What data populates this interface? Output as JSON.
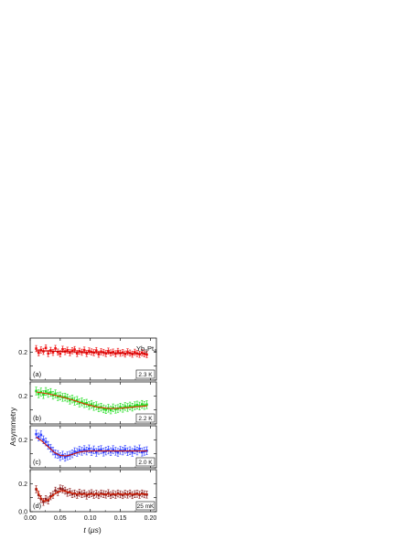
{
  "figure": {
    "ylabel": "Asymmetry",
    "xlabel_var": "t",
    "xlabel_unit": "μs",
    "x_ticks": [
      "0.00",
      "0.05",
      "0.10",
      "0.15",
      "0.20"
    ],
    "compound": {
      "base1": "Yb",
      "sub1": "3",
      "base2": "Pt",
      "sub2": "4"
    }
  },
  "chart_data": [
    {
      "type": "scatter",
      "panel_label": "(a)",
      "temperature": "2.3 K",
      "color": "#ee1111",
      "fit_color": "#cc0000",
      "xlim": [
        0,
        0.21
      ],
      "ylim": [
        0,
        0.3
      ],
      "y_ticks": [
        "0.2"
      ],
      "x": [
        0.01,
        0.014,
        0.018,
        0.022,
        0.026,
        0.03,
        0.034,
        0.038,
        0.042,
        0.046,
        0.05,
        0.054,
        0.058,
        0.062,
        0.066,
        0.07,
        0.074,
        0.078,
        0.082,
        0.086,
        0.09,
        0.094,
        0.098,
        0.102,
        0.106,
        0.11,
        0.114,
        0.118,
        0.122,
        0.126,
        0.13,
        0.134,
        0.138,
        0.142,
        0.146,
        0.15,
        0.154,
        0.158,
        0.162,
        0.166,
        0.17,
        0.174,
        0.178,
        0.182,
        0.186,
        0.19,
        0.194
      ],
      "y": [
        0.225,
        0.195,
        0.215,
        0.205,
        0.23,
        0.19,
        0.212,
        0.198,
        0.226,
        0.2,
        0.188,
        0.22,
        0.204,
        0.213,
        0.196,
        0.21,
        0.218,
        0.19,
        0.206,
        0.199,
        0.214,
        0.19,
        0.208,
        0.201,
        0.196,
        0.211,
        0.185,
        0.203,
        0.198,
        0.19,
        0.207,
        0.194,
        0.2,
        0.188,
        0.205,
        0.192,
        0.197,
        0.186,
        0.202,
        0.193,
        0.185,
        0.199,
        0.19,
        0.184,
        0.196,
        0.187,
        0.182
      ],
      "yerr": 0.022,
      "fit": {
        "x": [
          0.01,
          0.05,
          0.1,
          0.15,
          0.195
        ],
        "y": [
          0.21,
          0.205,
          0.199,
          0.193,
          0.188
        ]
      }
    },
    {
      "type": "scatter",
      "panel_label": "(b)",
      "temperature": "2.2 K",
      "color": "#22dd22",
      "fit_color": "#dd3300",
      "xlim": [
        0,
        0.21
      ],
      "ylim": [
        0,
        0.3
      ],
      "y_ticks": [
        "0.2"
      ],
      "x": [
        0.01,
        0.014,
        0.018,
        0.022,
        0.026,
        0.03,
        0.034,
        0.038,
        0.042,
        0.046,
        0.05,
        0.054,
        0.058,
        0.062,
        0.066,
        0.07,
        0.074,
        0.078,
        0.082,
        0.086,
        0.09,
        0.094,
        0.098,
        0.102,
        0.106,
        0.11,
        0.114,
        0.118,
        0.122,
        0.126,
        0.13,
        0.134,
        0.138,
        0.142,
        0.146,
        0.15,
        0.154,
        0.158,
        0.162,
        0.166,
        0.17,
        0.174,
        0.178,
        0.182,
        0.186,
        0.19,
        0.194
      ],
      "y": [
        0.235,
        0.215,
        0.228,
        0.21,
        0.232,
        0.218,
        0.225,
        0.205,
        0.215,
        0.195,
        0.2,
        0.19,
        0.192,
        0.185,
        0.17,
        0.178,
        0.162,
        0.168,
        0.15,
        0.158,
        0.145,
        0.148,
        0.132,
        0.14,
        0.125,
        0.13,
        0.115,
        0.12,
        0.108,
        0.102,
        0.112,
        0.1,
        0.115,
        0.105,
        0.11,
        0.12,
        0.112,
        0.125,
        0.118,
        0.128,
        0.12,
        0.13,
        0.135,
        0.128,
        0.14,
        0.132,
        0.138
      ],
      "yerr": 0.028,
      "fit": {
        "x": [
          0.01,
          0.03,
          0.05,
          0.07,
          0.09,
          0.11,
          0.13,
          0.15,
          0.17,
          0.195
        ],
        "y": [
          0.228,
          0.215,
          0.196,
          0.172,
          0.145,
          0.122,
          0.11,
          0.112,
          0.12,
          0.13
        ]
      }
    },
    {
      "type": "scatter",
      "panel_label": "(c)",
      "temperature": "2.0 K",
      "color": "#3344ff",
      "fit_color": "#cc1100",
      "xlim": [
        0,
        0.21
      ],
      "ylim": [
        0,
        0.3
      ],
      "y_ticks": [
        "0.2"
      ],
      "x": [
        0.01,
        0.014,
        0.018,
        0.022,
        0.026,
        0.03,
        0.034,
        0.038,
        0.042,
        0.046,
        0.05,
        0.054,
        0.058,
        0.062,
        0.066,
        0.07,
        0.074,
        0.078,
        0.082,
        0.086,
        0.09,
        0.094,
        0.098,
        0.102,
        0.106,
        0.11,
        0.114,
        0.118,
        0.122,
        0.126,
        0.13,
        0.134,
        0.138,
        0.142,
        0.146,
        0.15,
        0.154,
        0.158,
        0.162,
        0.166,
        0.17,
        0.174,
        0.178,
        0.182,
        0.186,
        0.19,
        0.194
      ],
      "y": [
        0.24,
        0.22,
        0.235,
        0.2,
        0.185,
        0.16,
        0.14,
        0.12,
        0.1,
        0.095,
        0.08,
        0.09,
        0.075,
        0.085,
        0.09,
        0.1,
        0.115,
        0.11,
        0.125,
        0.118,
        0.13,
        0.12,
        0.135,
        0.115,
        0.128,
        0.11,
        0.125,
        0.13,
        0.112,
        0.12,
        0.127,
        0.115,
        0.13,
        0.118,
        0.11,
        0.125,
        0.12,
        0.132,
        0.115,
        0.122,
        0.11,
        0.128,
        0.12,
        0.135,
        0.112,
        0.118,
        0.122
      ],
      "yerr": 0.028,
      "fit": {
        "x": [
          0.01,
          0.02,
          0.03,
          0.04,
          0.05,
          0.06,
          0.07,
          0.08,
          0.09,
          0.1,
          0.13,
          0.16,
          0.195
        ],
        "y": [
          0.22,
          0.19,
          0.15,
          0.11,
          0.088,
          0.085,
          0.095,
          0.11,
          0.118,
          0.12,
          0.12,
          0.12,
          0.12
        ]
      }
    },
    {
      "type": "scatter",
      "panel_label": "(d)",
      "temperature": "25 mK",
      "color": "#8b1a1a",
      "fit_color": "#dd2200",
      "xlim": [
        0,
        0.21
      ],
      "ylim": [
        0,
        0.3
      ],
      "y_ticks": [
        "0.0",
        "0.2"
      ],
      "x": [
        0.01,
        0.014,
        0.018,
        0.022,
        0.026,
        0.03,
        0.034,
        0.038,
        0.042,
        0.046,
        0.05,
        0.054,
        0.058,
        0.062,
        0.066,
        0.07,
        0.074,
        0.078,
        0.082,
        0.086,
        0.09,
        0.094,
        0.098,
        0.102,
        0.106,
        0.11,
        0.114,
        0.118,
        0.122,
        0.126,
        0.13,
        0.134,
        0.138,
        0.142,
        0.146,
        0.15,
        0.154,
        0.158,
        0.162,
        0.166,
        0.17,
        0.174,
        0.178,
        0.182,
        0.186,
        0.19,
        0.194
      ],
      "y": [
        0.16,
        0.12,
        0.09,
        0.07,
        0.09,
        0.08,
        0.11,
        0.12,
        0.15,
        0.14,
        0.165,
        0.16,
        0.15,
        0.135,
        0.14,
        0.125,
        0.13,
        0.12,
        0.135,
        0.125,
        0.13,
        0.115,
        0.125,
        0.132,
        0.12,
        0.128,
        0.118,
        0.13,
        0.125,
        0.122,
        0.132,
        0.118,
        0.126,
        0.12,
        0.13,
        0.124,
        0.118,
        0.128,
        0.122,
        0.13,
        0.118,
        0.125,
        0.128,
        0.12,
        0.13,
        0.124,
        0.122
      ],
      "yerr": 0.025,
      "fit": {
        "x": [
          0.01,
          0.015,
          0.02,
          0.025,
          0.03,
          0.04,
          0.05,
          0.06,
          0.07,
          0.08,
          0.1,
          0.13,
          0.16,
          0.195
        ],
        "y": [
          0.17,
          0.12,
          0.085,
          0.075,
          0.085,
          0.125,
          0.15,
          0.145,
          0.132,
          0.125,
          0.125,
          0.125,
          0.125,
          0.125
        ]
      }
    }
  ]
}
